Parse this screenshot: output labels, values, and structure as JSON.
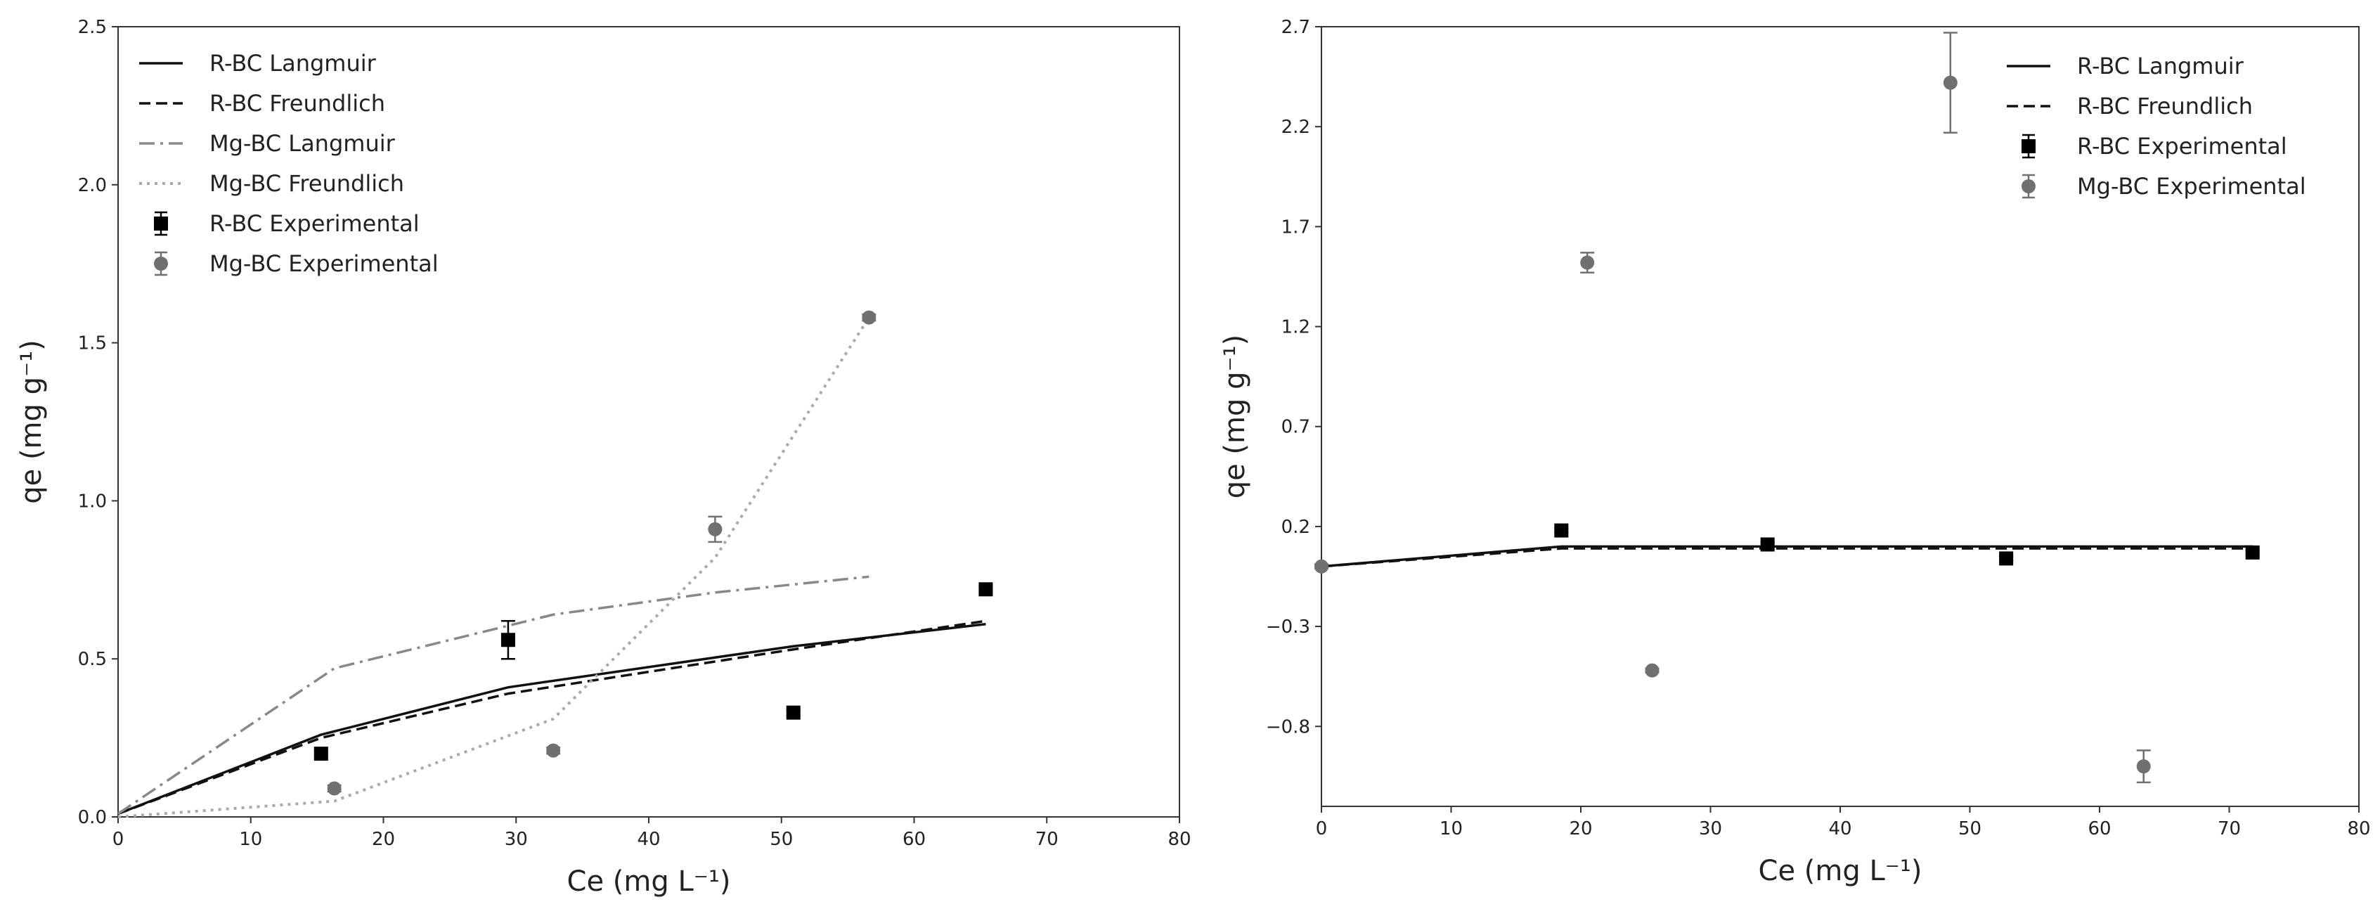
{
  "chart_data": [
    {
      "type": "scatter",
      "xlabel": "Ce (mg L⁻¹)",
      "ylabel": "qe (mg g⁻¹)",
      "xlim": [
        0,
        80
      ],
      "ylim": [
        0,
        2.5
      ],
      "xticks": [
        0,
        10,
        20,
        30,
        40,
        50,
        60,
        70,
        80
      ],
      "yticks": [
        0.0,
        0.5,
        1.0,
        1.5,
        2.0,
        2.5
      ],
      "ytick_labels": [
        "0.0",
        "0.5",
        "1.0",
        "1.5",
        "2.0",
        "2.5"
      ],
      "grid": false,
      "legend_position": "top-left",
      "series": [
        {
          "name": "R-BC Langmuir",
          "kind": "line",
          "style": "solid",
          "color": "#111111",
          "x": [
            0,
            15.3,
            29.4,
            50.9,
            65.4
          ],
          "y": [
            0.01,
            0.26,
            0.41,
            0.54,
            0.61
          ]
        },
        {
          "name": "R-BC Freundlich",
          "kind": "line",
          "style": "dashed",
          "color": "#111111",
          "x": [
            0,
            15.3,
            29.4,
            50.9,
            65.4
          ],
          "y": [
            0.01,
            0.25,
            0.39,
            0.53,
            0.62
          ]
        },
        {
          "name": "Mg-BC Langmuir",
          "kind": "line",
          "style": "dashdot",
          "color": "#888888",
          "x": [
            0,
            16.3,
            32.8,
            45.0,
            56.6
          ],
          "y": [
            0.01,
            0.47,
            0.64,
            0.71,
            0.76
          ]
        },
        {
          "name": "Mg-BC Freundlich",
          "kind": "line",
          "style": "dotted",
          "color": "#aaaaaa",
          "x": [
            0,
            16.3,
            32.8,
            45.0,
            56.6
          ],
          "y": [
            0.0,
            0.05,
            0.31,
            0.82,
            1.58
          ]
        },
        {
          "name": "R-BC Experimental",
          "kind": "points",
          "marker": "square",
          "color": "#000000",
          "x": [
            15.3,
            29.4,
            50.9,
            65.4
          ],
          "y": [
            0.2,
            0.56,
            0.33,
            0.72
          ],
          "err": [
            0.01,
            0.06,
            0.01,
            0.01
          ]
        },
        {
          "name": "Mg-BC Experimental",
          "kind": "points",
          "marker": "circle",
          "color": "#707070",
          "x": [
            16.3,
            32.8,
            45.0,
            56.6
          ],
          "y": [
            0.09,
            0.21,
            0.91,
            1.58
          ],
          "err": [
            0.01,
            0.01,
            0.04,
            0.01
          ]
        }
      ]
    },
    {
      "type": "scatter",
      "xlabel": "Ce (mg L⁻¹)",
      "ylabel": "qe (mg g⁻¹)",
      "xlim": [
        0,
        80
      ],
      "ylim": [
        -1.2,
        2.7
      ],
      "xticks": [
        0,
        10,
        20,
        30,
        40,
        50,
        60,
        70,
        80
      ],
      "yticks": [
        -0.8,
        -0.3,
        0.2,
        0.7,
        1.2,
        1.7,
        2.2,
        2.7
      ],
      "ytick_labels": [
        "−0.8",
        "−0.3",
        "0.2",
        "0.7",
        "1.2",
        "1.7",
        "2.2",
        "2.7"
      ],
      "grid": false,
      "legend_position": "top-right",
      "series": [
        {
          "name": "R-BC Langmuir",
          "kind": "line",
          "style": "solid",
          "color": "#111111",
          "x": [
            0,
            18.5,
            34.4,
            52.8,
            71.8
          ],
          "y": [
            0.0,
            0.1,
            0.1,
            0.1,
            0.1
          ]
        },
        {
          "name": "R-BC Freundlich",
          "kind": "line",
          "style": "dashed",
          "color": "#111111",
          "x": [
            0,
            18.5,
            34.4,
            52.8,
            71.8
          ],
          "y": [
            0.0,
            0.09,
            0.09,
            0.09,
            0.09
          ]
        },
        {
          "name": "R-BC Experimental",
          "kind": "points",
          "marker": "square",
          "color": "#000000",
          "x": [
            18.5,
            34.4,
            52.8,
            71.8
          ],
          "y": [
            0.18,
            0.11,
            0.04,
            0.07
          ],
          "err": [
            0.01,
            0.01,
            0.01,
            0.01
          ]
        },
        {
          "name": "Mg-BC Experimental",
          "kind": "points",
          "marker": "circle",
          "color": "#707070",
          "x": [
            0,
            20.5,
            25.5,
            48.5,
            63.4
          ],
          "y": [
            0.0,
            1.52,
            -0.52,
            2.42,
            -1.0
          ],
          "err": [
            0.01,
            0.05,
            0.01,
            0.25,
            0.08
          ]
        }
      ]
    }
  ]
}
